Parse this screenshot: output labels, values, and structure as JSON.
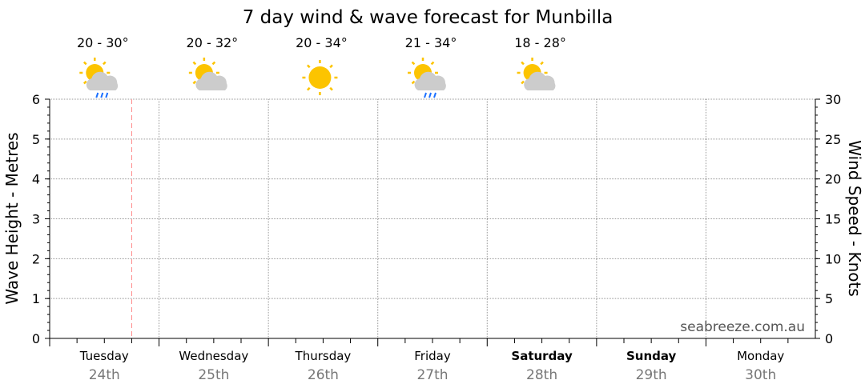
{
  "chart_data": {
    "type": "line",
    "title": "7 day wind & wave forecast for Munbilla",
    "ylabel_left": "Wave Height - Metres",
    "ylabel_right": "Wind Speed - Knots",
    "ylim_left": [
      0,
      6
    ],
    "ylim_right": [
      0,
      30
    ],
    "yticks_left": [
      "0",
      "1",
      "2",
      "3",
      "4",
      "5",
      "6"
    ],
    "yticks_right": [
      "0",
      "5",
      "10",
      "15",
      "20",
      "25",
      "30"
    ],
    "grid": true,
    "watermark": "seabreeze.com.au",
    "now_marker_day_fraction": 0.75,
    "days": [
      {
        "name": "Tuesday",
        "date": "24th",
        "bold": false,
        "temp": "20 - 30°",
        "icon": "sun-cloud-rain-icon"
      },
      {
        "name": "Wednesday",
        "date": "25th",
        "bold": false,
        "temp": "20 - 32°",
        "icon": "sun-cloud-icon"
      },
      {
        "name": "Thursday",
        "date": "26th",
        "bold": false,
        "temp": "20 - 34°",
        "icon": "sun-icon"
      },
      {
        "name": "Friday",
        "date": "27th",
        "bold": false,
        "temp": "21 - 34°",
        "icon": "sun-cloud-rain-icon"
      },
      {
        "name": "Saturday",
        "date": "28th",
        "bold": true,
        "temp": "18 - 28°",
        "icon": "sun-cloud-icon"
      },
      {
        "name": "Sunday",
        "date": "29th",
        "bold": true
      },
      {
        "name": "Monday",
        "date": "30th",
        "bold": false
      }
    ],
    "series": []
  }
}
